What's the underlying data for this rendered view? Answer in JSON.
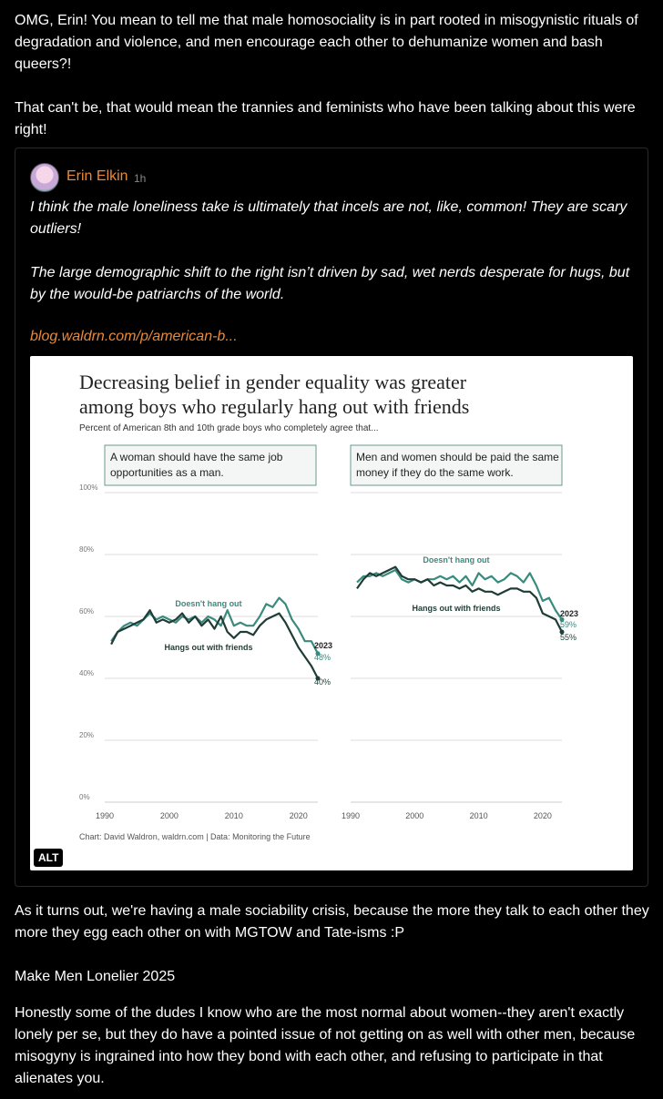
{
  "post": {
    "para1": "OMG, Erin! You mean to tell me that male homosociality is in part rooted in misogynistic rituals of degradation and violence, and men encourage each other to dehumanize women and bash queers?!",
    "para2": "That can't be, that would mean the trannies and feminists who have been talking about this were right!",
    "para3": "As it turns out, we're having a male sociability crisis, because the more they talk to each other they more they egg each other on with MGTOW and Tate-isms :P",
    "para4": "Make Men Lonelier 2025",
    "para5": "Honestly some of the dudes I know who are the most normal about women--they aren't exactly lonely per se, but they do have a pointed issue of not getting on as well with other men, because misogyny is ingrained into how they bond with each other, and refusing to participate in that alienates you."
  },
  "quote": {
    "author": "Erin Elkin",
    "time": "1h",
    "text1": "I think the male loneliness take is ultimately that incels are not, like, common! They are scary outliers!",
    "text2": "The large demographic shift to the right isn’t driven by sad, wet nerds desperate for hugs, but by the would-be patriarchs of the world.",
    "link": "blog.waldrn.com/p/american-b...",
    "alt_label": "ALT"
  },
  "colors": {
    "not_hang": "#3a8a7e",
    "hang": "#1f3d36",
    "link": "#e88a3a"
  },
  "chart_data": [
    {
      "type": "line",
      "title": "Decreasing belief in gender equality was greater among boys who regularly hang out with friends",
      "subtitle": "Percent of American 8th and 10th grade boys who completely agree that...",
      "panel_label": "A woman should have the same job opportunities as a man.",
      "yticks": [
        "100%",
        "80%",
        "60%",
        "40%",
        "20%",
        "0%"
      ],
      "xticks": [
        "1990",
        "2000",
        "2010",
        "2020"
      ],
      "ylim": [
        0,
        100
      ],
      "xlim": [
        1990,
        2023
      ],
      "end_year_label": "2023",
      "series": [
        {
          "name": "Doesn't hang out",
          "end_label": "48%",
          "x": [
            1991,
            1992,
            1993,
            1994,
            1995,
            1996,
            1997,
            1998,
            1999,
            2000,
            2001,
            2002,
            2003,
            2004,
            2005,
            2006,
            2007,
            2008,
            2009,
            2010,
            2011,
            2012,
            2013,
            2014,
            2015,
            2016,
            2017,
            2018,
            2019,
            2020,
            2021,
            2022,
            2023
          ],
          "y": [
            52,
            55,
            57,
            58,
            57,
            59,
            61,
            59,
            60,
            59,
            58,
            60,
            59,
            60,
            58,
            60,
            59,
            57,
            62,
            57,
            58,
            57,
            57,
            60,
            64,
            63,
            66,
            64,
            59,
            56,
            52,
            52,
            48
          ]
        },
        {
          "name": "Hangs out with friends",
          "end_label": "40%",
          "x": [
            1991,
            1992,
            1993,
            1994,
            1995,
            1996,
            1997,
            1998,
            1999,
            2000,
            2001,
            2002,
            2003,
            2004,
            2005,
            2006,
            2007,
            2008,
            2009,
            2010,
            2011,
            2012,
            2013,
            2014,
            2015,
            2016,
            2017,
            2018,
            2019,
            2020,
            2021,
            2022,
            2023
          ],
          "y": [
            51,
            55,
            56,
            57,
            58,
            59,
            62,
            58,
            59,
            58,
            59,
            61,
            58,
            60,
            57,
            59,
            56,
            60,
            55,
            53,
            55,
            55,
            54,
            57,
            59,
            60,
            61,
            58,
            54,
            50,
            47,
            44,
            40
          ]
        }
      ]
    },
    {
      "type": "line",
      "panel_label": "Men and women should be paid the same money if they do the same work.",
      "yticks": [
        "100%",
        "80%",
        "60%",
        "40%",
        "20%",
        "0%"
      ],
      "xticks": [
        "1990",
        "2000",
        "2010",
        "2020"
      ],
      "ylim": [
        0,
        100
      ],
      "xlim": [
        1990,
        2023
      ],
      "end_year_label": "2023",
      "series": [
        {
          "name": "Doesn't hang out",
          "end_label": "59%",
          "x": [
            1991,
            1992,
            1993,
            1994,
            1995,
            1996,
            1997,
            1998,
            1999,
            2000,
            2001,
            2002,
            2003,
            2004,
            2005,
            2006,
            2007,
            2008,
            2009,
            2010,
            2011,
            2012,
            2013,
            2014,
            2015,
            2016,
            2017,
            2018,
            2019,
            2020,
            2021,
            2022,
            2023
          ],
          "y": [
            71,
            73,
            73,
            74,
            73,
            74,
            75,
            72,
            71,
            72,
            71,
            72,
            72,
            73,
            72,
            73,
            71,
            73,
            70,
            74,
            72,
            73,
            71,
            72,
            74,
            73,
            71,
            74,
            70,
            65,
            66,
            62,
            59
          ]
        },
        {
          "name": "Hangs out with friends",
          "end_label": "55%",
          "x": [
            1991,
            1992,
            1993,
            1994,
            1995,
            1996,
            1997,
            1998,
            1999,
            2000,
            2001,
            2002,
            2003,
            2004,
            2005,
            2006,
            2007,
            2008,
            2009,
            2010,
            2011,
            2012,
            2013,
            2014,
            2015,
            2016,
            2017,
            2018,
            2019,
            2020,
            2021,
            2022,
            2023
          ],
          "y": [
            69,
            72,
            74,
            73,
            74,
            75,
            76,
            73,
            72,
            72,
            71,
            72,
            70,
            71,
            70,
            70,
            69,
            70,
            68,
            69,
            68,
            68,
            67,
            68,
            69,
            69,
            68,
            68,
            66,
            61,
            60,
            59,
            55
          ]
        }
      ]
    }
  ],
  "chart_source": "Chart: David Waldron, waldrn.com | Data: Monitoring the Future"
}
